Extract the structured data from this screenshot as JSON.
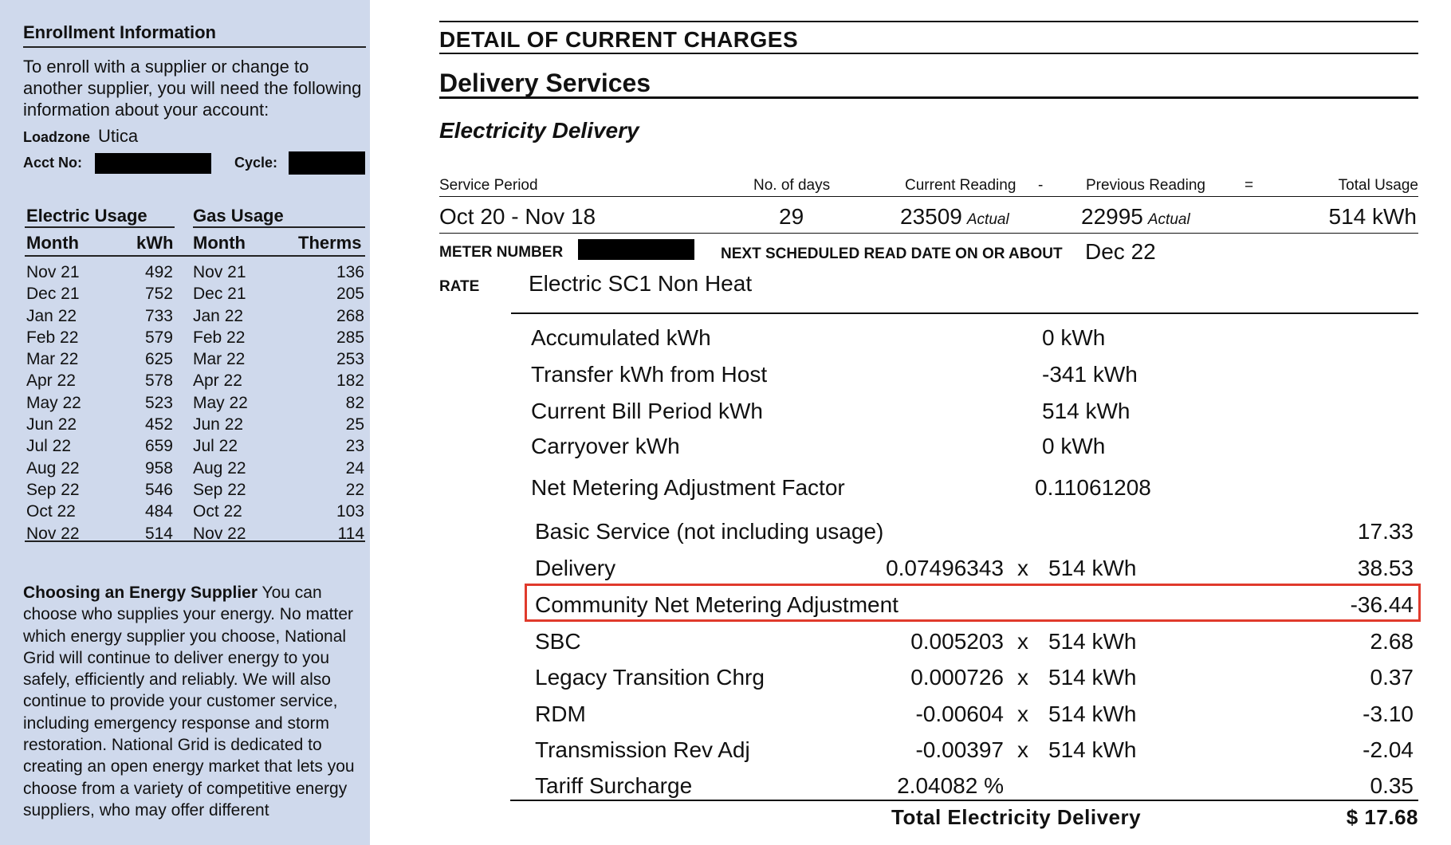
{
  "enrollment": {
    "heading": "Enrollment Information",
    "text": "To enroll with a supplier or change to another supplier, you will need the following information about your account:",
    "loadzone_label": "Loadzone",
    "loadzone_value": "Utica",
    "acct_label": "Acct No:",
    "cycle_label": "Cycle:"
  },
  "usage": {
    "electric_heading": "Electric Usage",
    "gas_heading": "Gas Usage",
    "col_month": "Month",
    "col_kwh": "kWh",
    "col_therms": "Therms",
    "rows": [
      {
        "e_month": "Nov 21",
        "kwh": "492",
        "g_month": "Nov 21",
        "therms": "136"
      },
      {
        "e_month": "Dec 21",
        "kwh": "752",
        "g_month": "Dec 21",
        "therms": "205"
      },
      {
        "e_month": "Jan 22",
        "kwh": "733",
        "g_month": "Jan 22",
        "therms": "268"
      },
      {
        "e_month": "Feb 22",
        "kwh": "579",
        "g_month": "Feb 22",
        "therms": "285"
      },
      {
        "e_month": "Mar 22",
        "kwh": "625",
        "g_month": "Mar 22",
        "therms": "253"
      },
      {
        "e_month": "Apr 22",
        "kwh": "578",
        "g_month": "Apr 22",
        "therms": "182"
      },
      {
        "e_month": "May 22",
        "kwh": "523",
        "g_month": "May 22",
        "therms": "82"
      },
      {
        "e_month": "Jun 22",
        "kwh": "452",
        "g_month": "Jun 22",
        "therms": "25"
      },
      {
        "e_month": "Jul 22",
        "kwh": "659",
        "g_month": "Jul 22",
        "therms": "23"
      },
      {
        "e_month": "Aug 22",
        "kwh": "958",
        "g_month": "Aug 22",
        "therms": "24"
      },
      {
        "e_month": "Sep 22",
        "kwh": "546",
        "g_month": "Sep 22",
        "therms": "22"
      },
      {
        "e_month": "Oct 22",
        "kwh": "484",
        "g_month": "Oct 22",
        "therms": "103"
      },
      {
        "e_month": "Nov 22",
        "kwh": "514",
        "g_month": "Nov 22",
        "therms": "114"
      }
    ]
  },
  "supplier": {
    "heading": "Choosing an Energy Supplier",
    "text": "You can choose who supplies your energy. No matter which energy supplier you choose, National Grid will continue to deliver energy to you safely, efficiently and reliably. We will also continue to provide your customer service, including emergency response and storm restoration. National Grid is dedicated to creating an open energy market that lets you choose from a variety of competitive energy suppliers, who may offer different"
  },
  "charges": {
    "title": "DETAIL OF CURRENT CHARGES",
    "section": "Delivery Services",
    "subsection": "Electricity Delivery",
    "headers": {
      "service_period": "Service Period",
      "days": "No. of days",
      "current": "Current Reading",
      "minus": "-",
      "previous": "Previous Reading",
      "equals": "=",
      "total": "Total Usage"
    },
    "period": "Oct 20 - Nov 18",
    "days": "29",
    "current_reading": "23509",
    "current_type": "Actual",
    "previous_reading": "22995",
    "previous_type": "Actual",
    "total_usage": "514 kWh",
    "meter_label": "METER NUMBER",
    "next_read_label": "NEXT SCHEDULED READ DATE ON OR ABOUT",
    "next_read_date": "Dec 22",
    "rate_label": "RATE",
    "rate_value": "Electric SC1 Non Heat",
    "metering": [
      {
        "label": "Accumulated kWh",
        "value": "0 kWh"
      },
      {
        "label": "Transfer kWh from Host",
        "value": "-341 kWh"
      },
      {
        "label": "Current Bill Period kWh",
        "value": "514 kWh"
      },
      {
        "label": "Carryover kWh",
        "value": "0 kWh"
      },
      {
        "label": "Net Metering Adjustment Factor",
        "value": "0.11061208"
      }
    ],
    "lines": [
      {
        "label": "Basic Service (not including usage)",
        "rate": "",
        "x": "",
        "qty": "",
        "amount": "17.33"
      },
      {
        "label": "Delivery",
        "rate": "0.07496343",
        "x": "x",
        "qty": "514 kWh",
        "amount": "38.53"
      },
      {
        "label": "Community Net Metering Adjustment",
        "rate": "",
        "x": "",
        "qty": "",
        "amount": "-36.44"
      },
      {
        "label": "SBC",
        "rate": "0.005203",
        "x": "x",
        "qty": "514 kWh",
        "amount": "2.68"
      },
      {
        "label": "Legacy Transition Chrg",
        "rate": "0.000726",
        "x": "x",
        "qty": "514 kWh",
        "amount": "0.37"
      },
      {
        "label": "RDM",
        "rate": "-0.00604",
        "x": "x",
        "qty": "514 kWh",
        "amount": "-3.10"
      },
      {
        "label": "Transmission Rev Adj",
        "rate": "-0.00397",
        "x": "x",
        "qty": "514 kWh",
        "amount": "-2.04"
      },
      {
        "label": "Tariff Surcharge",
        "rate": "2.04082 %",
        "x": "",
        "qty": "",
        "amount": "0.35"
      }
    ],
    "total_label": "Total Electricity Delivery",
    "total_amount": "$ 17.68"
  }
}
